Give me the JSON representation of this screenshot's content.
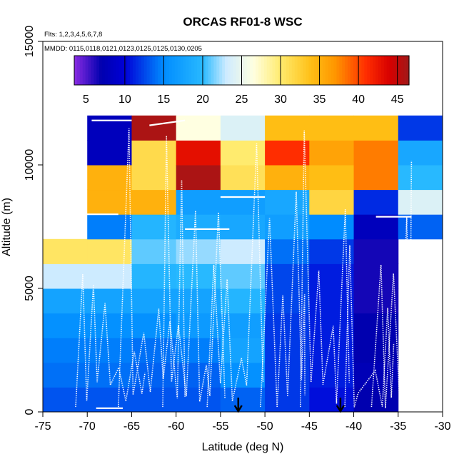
{
  "chart_data": {
    "type": "heatmap",
    "title": "ORCAS RF01-8 WSC",
    "flights_note": "Flts: 1,2,3,4,5,6,7,8",
    "dates_note": "MMDD: 0115,0118,0121,0123,0125,0125,0130,0205",
    "xlabel": "Latitude (deg N)",
    "ylabel": "Altitude (m)",
    "xlim": [
      -75,
      -30
    ],
    "ylim": [
      0,
      15000
    ],
    "x_ticks": [
      -75,
      -70,
      -65,
      -60,
      -55,
      -50,
      -45,
      -40,
      -35,
      -30
    ],
    "y_ticks": [
      0,
      5000,
      10000,
      15000
    ],
    "colorbar": {
      "min": 3.5,
      "max": 46.5,
      "ticks": [
        5,
        10,
        15,
        20,
        25,
        30,
        35,
        40,
        45
      ],
      "separators": [
        10,
        15,
        20,
        25,
        30,
        35,
        40,
        45
      ]
    },
    "cell_height_m": 1000,
    "columns": [
      {
        "lat_range": [
          -75,
          -70
        ],
        "bottom_alt": 0,
        "values": [
          13,
          14,
          14.5,
          15.5,
          17.5,
          23,
          30.5
        ]
      },
      {
        "lat_range": [
          -70,
          -65
        ],
        "bottom_alt": 0,
        "values": [
          13,
          14,
          14.5,
          15.5,
          17.5,
          23,
          30.5,
          14.5,
          35,
          35,
          8,
          8
        ]
      },
      {
        "lat_range": [
          -65,
          -60
        ],
        "bottom_alt": 0,
        "values": [
          13,
          13.5,
          14,
          15.5,
          17.5,
          19.5,
          21,
          19.5,
          35,
          31.5,
          31.5,
          46
        ]
      },
      {
        "lat_range": [
          -60,
          -55
        ],
        "bottom_alt": 0,
        "values": [
          13,
          13.5,
          14.5,
          16.5,
          17.5,
          20,
          22,
          18.5,
          17,
          46,
          43,
          26.5
        ]
      },
      {
        "lat_range": [
          -55,
          -50
        ],
        "bottom_alt": 0,
        "values": [
          13.5,
          15.5,
          17.5,
          17,
          19.5,
          21,
          23,
          18,
          17,
          31,
          30,
          24
        ]
      },
      {
        "lat_range": [
          -50,
          -45
        ],
        "bottom_alt": 0,
        "values": [
          12,
          12,
          12,
          12,
          12.5,
          12.5,
          14,
          17,
          18,
          35,
          41,
          34
        ]
      },
      {
        "lat_range": [
          -45,
          -40
        ],
        "bottom_alt": 0,
        "values": [
          10.5,
          11,
          11,
          11,
          11,
          11,
          12,
          15,
          32,
          34,
          36,
          34
        ]
      },
      {
        "lat_range": [
          -40,
          -35
        ],
        "bottom_alt": 0,
        "values": [
          7,
          7.5,
          7,
          7,
          6.5,
          6.5,
          6.5,
          8,
          11.5,
          38,
          38,
          34
        ]
      },
      {
        "lat_range": [
          -35,
          -30
        ],
        "bottom_alt": 7000,
        "values": [
          13.5,
          24,
          20,
          18,
          12
        ]
      }
    ],
    "markers": [
      {
        "lat": -53,
        "label": "down-arrow"
      },
      {
        "lat": -41.5,
        "label": "down-arrow"
      }
    ]
  }
}
